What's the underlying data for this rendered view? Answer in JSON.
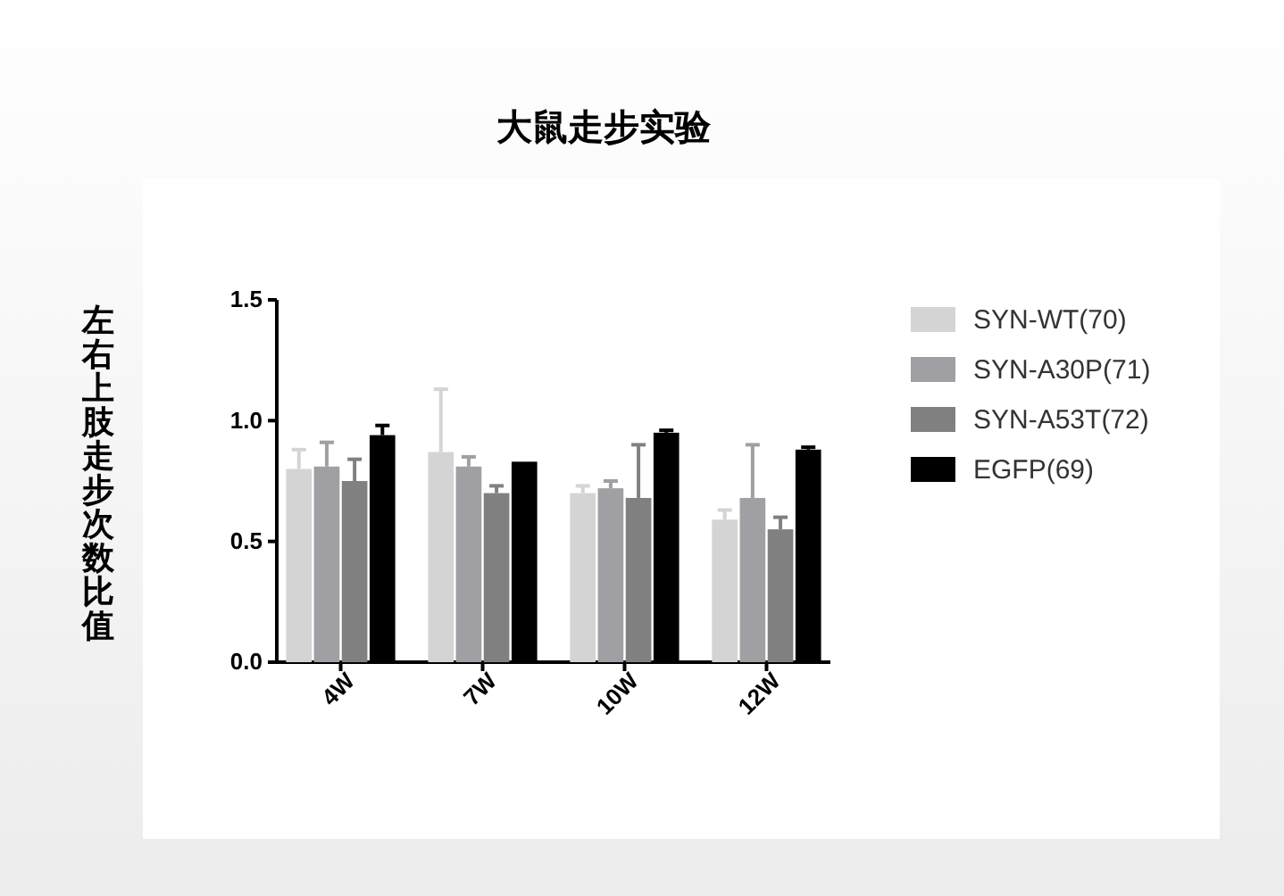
{
  "chart_data": {
    "type": "bar",
    "title": "大鼠走步实验",
    "ylabel": "左右上肢走步次数比值",
    "categories": [
      "4W",
      "7W",
      "10W",
      "12W"
    ],
    "series": [
      {
        "name": "SYN-WT(70)",
        "color": "#d4d4d4",
        "values": [
          0.8,
          0.87,
          0.7,
          0.59
        ],
        "errors": [
          [
            0.8,
            0.88
          ],
          [
            0.87,
            1.13
          ],
          [
            0.7,
            0.73
          ],
          [
            0.59,
            0.63
          ]
        ]
      },
      {
        "name": "SYN-A30P(71)",
        "color": "#a0a0a4",
        "values": [
          0.81,
          0.81,
          0.72,
          0.68
        ],
        "errors": [
          [
            0.81,
            0.91
          ],
          [
            0.81,
            0.85
          ],
          [
            0.72,
            0.75
          ],
          [
            0.68,
            0.9
          ]
        ]
      },
      {
        "name": "SYN-A53T(72)",
        "color": "#808080",
        "values": [
          0.75,
          0.7,
          0.68,
          0.55
        ],
        "errors": [
          [
            0.75,
            0.84
          ],
          [
            0.7,
            0.73
          ],
          [
            0.68,
            0.9
          ],
          [
            0.55,
            0.6
          ]
        ]
      },
      {
        "name": "EGFP(69)",
        "color": "#000000",
        "values": [
          0.94,
          0.83,
          0.95,
          0.88
        ],
        "errors": [
          [
            0.94,
            0.98
          ],
          null,
          [
            0.95,
            0.96
          ],
          [
            0.88,
            0.89
          ]
        ]
      }
    ],
    "ylim": [
      0,
      1.5
    ],
    "yticks": [
      {
        "value": 0,
        "label": "0.0"
      },
      {
        "value": 0.5,
        "label": "0.5"
      },
      {
        "value": 1,
        "label": "1.0"
      },
      {
        "value": 1.5,
        "label": "1.5"
      }
    ],
    "legend": "right"
  }
}
